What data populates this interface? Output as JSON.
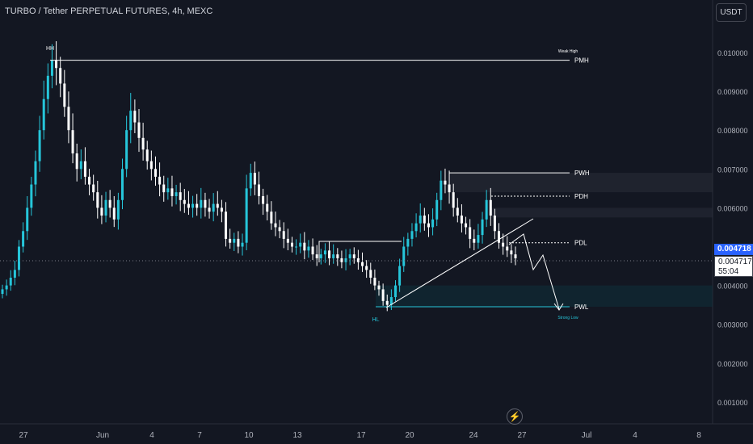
{
  "header": {
    "title": "TURBO / Tether PERPETUAL FUTURES, 4h, MEXC",
    "currency_button": "USDT"
  },
  "price_axis": {
    "ticks": [
      "0.010000",
      "0.009000",
      "0.008000",
      "0.007000",
      "0.006000",
      "0.005000",
      "0.004000",
      "0.003000",
      "0.002000",
      "0.001000"
    ],
    "last_price": "0.004718",
    "current_price": "0.004717",
    "countdown": "55:04",
    "last_price_color": "#2962ff"
  },
  "time_axis": {
    "ticks": [
      "27",
      "Jun",
      "4",
      "7",
      "10",
      "13",
      "17",
      "20",
      "24",
      "27",
      "Jul",
      "4",
      "8"
    ]
  },
  "icons": {
    "flash": "lightning-icon"
  },
  "chart_data": {
    "type": "candlestick",
    "symbol": "TURBO / Tether PERPETUAL FUTURES",
    "interval": "4h",
    "exchange": "MEXC",
    "ylim": [
      0.0,
      0.0106
    ],
    "colors": {
      "up": "#26c6da",
      "down": "#ffffff",
      "background": "#131722",
      "grid": false
    },
    "candles_approx_close": [
      0.0039,
      0.004,
      0.0042,
      0.0044,
      0.005,
      0.0054,
      0.006,
      0.0066,
      0.0072,
      0.008,
      0.0088,
      0.0094,
      0.0098,
      0.0096,
      0.0092,
      0.0086,
      0.008,
      0.0074,
      0.007,
      0.0072,
      0.0068,
      0.0066,
      0.0064,
      0.006,
      0.0058,
      0.0062,
      0.006,
      0.0057,
      0.0062,
      0.007,
      0.008,
      0.0085,
      0.0082,
      0.0078,
      0.0075,
      0.0072,
      0.007,
      0.0068,
      0.0066,
      0.0064,
      0.0065,
      0.0063,
      0.0064,
      0.0062,
      0.0061,
      0.006,
      0.0061,
      0.006,
      0.0062,
      0.006,
      0.0059,
      0.0061,
      0.006,
      0.0059,
      0.0052,
      0.0051,
      0.0052,
      0.005,
      0.0051,
      0.0065,
      0.0069,
      0.0066,
      0.0063,
      0.0061,
      0.0059,
      0.0056,
      0.0055,
      0.0054,
      0.0052,
      0.0051,
      0.005,
      0.005,
      0.0051,
      0.0049,
      0.005,
      0.0048,
      0.0047,
      0.0048,
      0.0049,
      0.0047,
      0.0048,
      0.0047,
      0.0046,
      0.0047,
      0.0048,
      0.0047,
      0.0046,
      0.0045,
      0.0044,
      0.0042,
      0.004,
      0.0039,
      0.0036,
      0.0035,
      0.0037,
      0.004,
      0.0045,
      0.005,
      0.0052,
      0.0054,
      0.0056,
      0.0058,
      0.0056,
      0.0055,
      0.0057,
      0.0062,
      0.0067,
      0.0066,
      0.0064,
      0.006,
      0.0058,
      0.0056,
      0.0055,
      0.0052,
      0.0051,
      0.0053,
      0.0057,
      0.0062,
      0.0058,
      0.0054,
      0.0051,
      0.005,
      0.0049,
      0.0048,
      0.0047
    ],
    "levels": [
      {
        "label": "PMH",
        "price": 0.0098
      },
      {
        "label": "PWH",
        "price": 0.0069
      },
      {
        "label": "PDH",
        "price": 0.0063
      },
      {
        "label": "PDL",
        "price": 0.0051
      },
      {
        "label": "PWL",
        "price": 0.00345
      }
    ],
    "annotations": [
      "HH",
      "Weak High",
      "HL",
      "Strong Low"
    ]
  }
}
